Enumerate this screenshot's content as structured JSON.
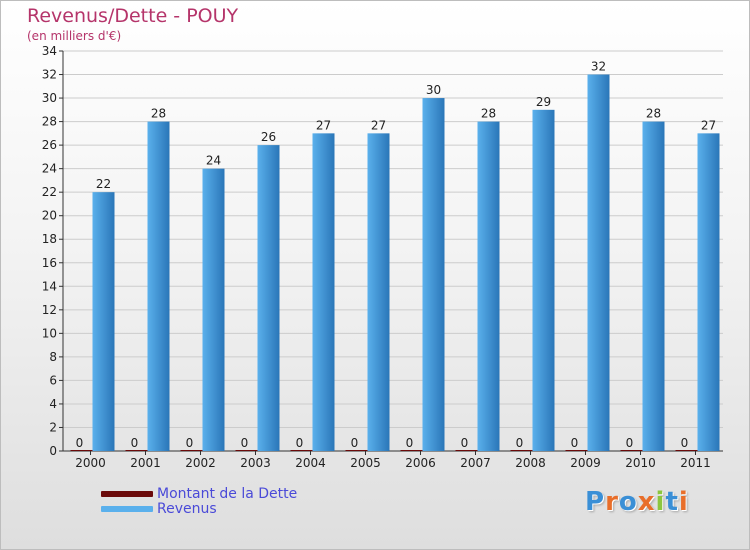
{
  "title": "Revenus/Dette - POUY",
  "subtitle": "(en milliers d'€)",
  "logo": {
    "letters": [
      {
        "ch": "P",
        "color": "#3a8fd6"
      },
      {
        "ch": "r",
        "color": "#e86e2a"
      },
      {
        "ch": "o",
        "color": "#3a8fd6"
      },
      {
        "ch": "x",
        "color": "#e86e2a"
      },
      {
        "ch": "i",
        "color": "#8cc63e"
      },
      {
        "ch": "t",
        "color": "#3a8fd6"
      },
      {
        "ch": "i",
        "color": "#e86e2a"
      }
    ]
  },
  "colors": {
    "revenus_light": "#5ab0ec",
    "revenus_dark": "#2a76b8",
    "dette": "#6b0a0a",
    "axis_text": "#222222",
    "grid": "#cccccc"
  },
  "chart_data": {
    "type": "bar",
    "title": "Revenus/Dette - POUY",
    "ylabel": "(en milliers d'€)",
    "xlabel": "",
    "categories": [
      "2000",
      "2001",
      "2002",
      "2003",
      "2004",
      "2005",
      "2006",
      "2007",
      "2008",
      "2009",
      "2010",
      "2011"
    ],
    "series": [
      {
        "name": "Montant de la Dette",
        "values": [
          0,
          0,
          0,
          0,
          0,
          0,
          0,
          0,
          0,
          0,
          0,
          0
        ]
      },
      {
        "name": "Revenus",
        "values": [
          22,
          28,
          24,
          26,
          27,
          27,
          30,
          28,
          29,
          32,
          28,
          27
        ]
      }
    ],
    "ylim": [
      0,
      34
    ],
    "yticks": [
      0,
      2,
      4,
      6,
      8,
      10,
      12,
      14,
      16,
      18,
      20,
      22,
      24,
      26,
      28,
      30,
      32,
      34
    ],
    "legend": [
      "Montant de la Dette",
      "Revenus"
    ],
    "legend_position": "bottom-left"
  }
}
